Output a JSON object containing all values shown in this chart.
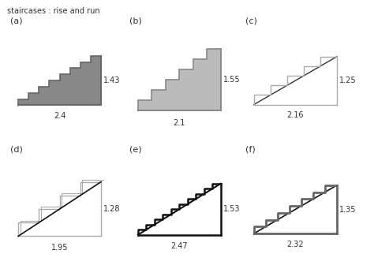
{
  "title": "staircases : rise and run",
  "panels": [
    {
      "label": "(a)",
      "n_steps": 8,
      "run": 2.4,
      "rise": 1.43,
      "fill_color": "#888888",
      "edge_color": "#666666",
      "line_width": 1.2,
      "style": "filled_dark",
      "diag_color": "#000000",
      "diag_lw": 1.2
    },
    {
      "label": "(b)",
      "n_steps": 6,
      "run": 2.1,
      "rise": 1.55,
      "fill_color": "#bbbbbb",
      "edge_color": "#888888",
      "line_width": 1.2,
      "style": "filled_light",
      "diag_color": "#000000",
      "diag_lw": 1.2
    },
    {
      "label": "(c)",
      "n_steps": 5,
      "run": 2.16,
      "rise": 1.25,
      "fill_color": "none",
      "edge_color": "#aaaaaa",
      "line_width": 1.0,
      "style": "outline_light",
      "diag_color": "#333333",
      "diag_lw": 1.0
    },
    {
      "label": "(d)",
      "n_steps": 4,
      "run": 1.95,
      "rise": 1.28,
      "fill_color": "none",
      "edge_color": "#aaaaaa",
      "line_width": 1.0,
      "style": "double_line",
      "diag_color": "#111111",
      "diag_lw": 1.2
    },
    {
      "label": "(e)",
      "n_steps": 10,
      "run": 2.47,
      "rise": 1.53,
      "fill_color": "none",
      "edge_color": "#111111",
      "line_width": 1.8,
      "style": "bold_outline",
      "diag_color": "#111111",
      "diag_lw": 1.5
    },
    {
      "label": "(f)",
      "n_steps": 7,
      "run": 2.32,
      "rise": 1.35,
      "fill_color": "none",
      "edge_color": "#666666",
      "line_width": 2.0,
      "style": "bold_gray",
      "diag_color": "#111111",
      "diag_lw": 1.2
    }
  ],
  "text_color": "#333333",
  "bg_color": "#ffffff",
  "label_fontsize": 8,
  "dim_fontsize": 7
}
